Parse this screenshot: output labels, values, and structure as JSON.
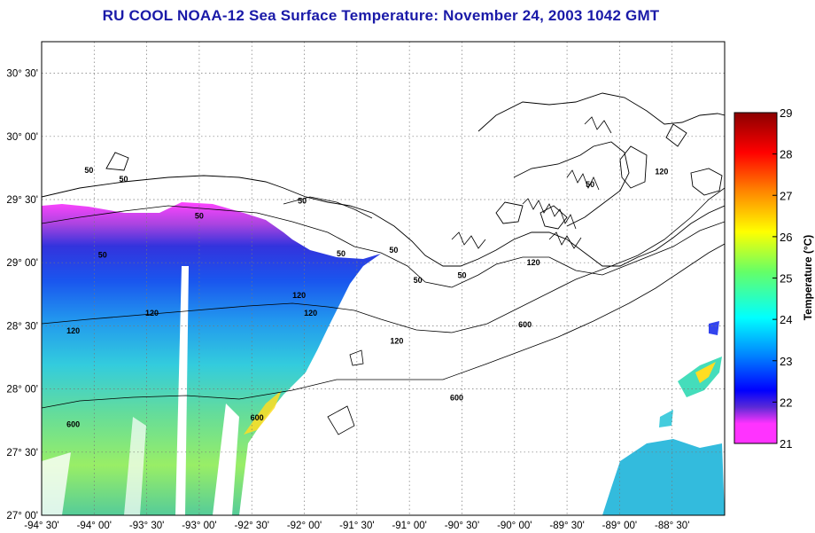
{
  "title": "RU COOL  NOAA-12  Sea Surface Temperature:  November 24, 2003 1042 GMT",
  "map": {
    "lon_range": [
      -94.5,
      -88.0
    ],
    "lat_range": [
      27.0,
      30.75
    ],
    "lon_ticks": [
      "-94° 30'",
      "-94° 00'",
      "-93° 30'",
      "-93° 00'",
      "-92° 30'",
      "-92° 00'",
      "-91° 30'",
      "-91° 00'",
      "-90° 30'",
      "-90° 00'",
      "-89° 30'",
      "-89° 00'",
      "-88° 30'"
    ],
    "lat_ticks": [
      "27° 00'",
      "27° 30'",
      "28° 00'",
      "28° 30'",
      "29° 00'",
      "29° 30'",
      "30° 00'",
      "30° 30'"
    ],
    "grid": "dotted",
    "contour_labels": [
      {
        "text": "50",
        "lon": -94.05,
        "lat": 29.71
      },
      {
        "text": "50",
        "lon": -93.72,
        "lat": 29.64
      },
      {
        "text": "50",
        "lon": -93.0,
        "lat": 29.35
      },
      {
        "text": "50",
        "lon": -92.02,
        "lat": 29.47
      },
      {
        "text": "50",
        "lon": -93.92,
        "lat": 29.04
      },
      {
        "text": "50",
        "lon": -91.65,
        "lat": 29.05
      },
      {
        "text": "50",
        "lon": -91.15,
        "lat": 29.08
      },
      {
        "text": "50",
        "lon": -90.92,
        "lat": 28.84
      },
      {
        "text": "50",
        "lon": -90.5,
        "lat": 28.88
      },
      {
        "text": "50",
        "lon": -89.28,
        "lat": 29.6
      },
      {
        "text": "120",
        "lon": -93.45,
        "lat": 28.58
      },
      {
        "text": "120",
        "lon": -92.05,
        "lat": 28.72
      },
      {
        "text": "120",
        "lon": -91.94,
        "lat": 28.58
      },
      {
        "text": "120",
        "lon": -94.2,
        "lat": 28.44
      },
      {
        "text": "120",
        "lon": -91.12,
        "lat": 28.36
      },
      {
        "text": "120",
        "lon": -89.82,
        "lat": 28.98
      },
      {
        "text": "120",
        "lon": -88.6,
        "lat": 29.7
      },
      {
        "text": "600",
        "lon": -90.55,
        "lat": 27.91
      },
      {
        "text": "600",
        "lon": -89.9,
        "lat": 28.49
      },
      {
        "text": "600",
        "lon": -94.2,
        "lat": 27.7
      },
      {
        "text": "600",
        "lon": -92.45,
        "lat": 27.75
      }
    ]
  },
  "colorbar": {
    "title": "Temperature (°C)",
    "min": 21,
    "max": 29,
    "ticks": [
      "29",
      "28",
      "27",
      "26",
      "25",
      "24",
      "23",
      "22",
      "21"
    ],
    "colors": [
      "#ff33ff",
      "#5a2ad6",
      "#0000ff",
      "#0088ff",
      "#00ffff",
      "#66ff66",
      "#ffff00",
      "#ff8800",
      "#ff0000",
      "#8b0000"
    ]
  }
}
